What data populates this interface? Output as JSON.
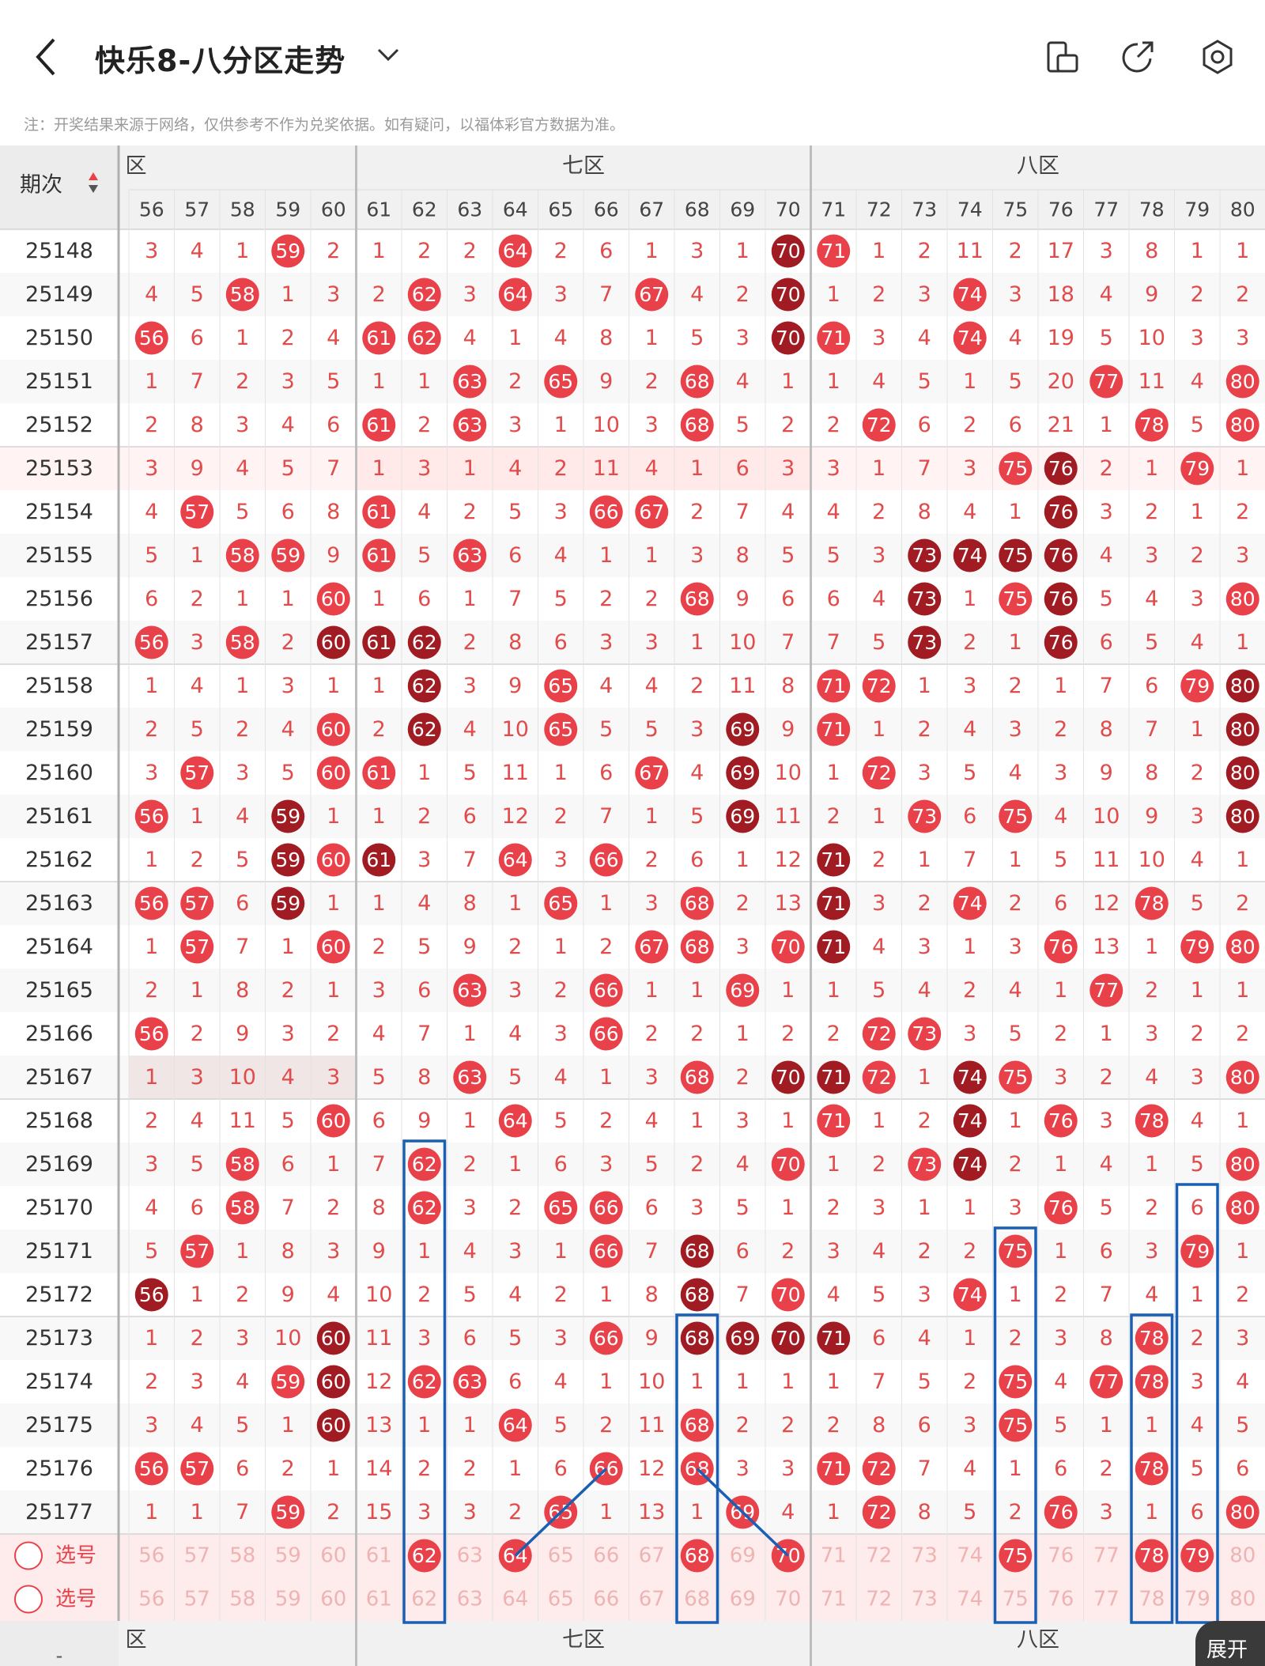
{
  "header": {
    "title": "快乐8-八分区走势",
    "icons": [
      "back-icon",
      "chevron-down-icon",
      "phone-landscape-icon",
      "share-icon",
      "settings-icon"
    ]
  },
  "note": "注：开奖结果来源于网络，仅供参考不作为兑奖依据。如有疑问，以福体彩官方数据为准。",
  "table": {
    "period_label": "期次",
    "zones": [
      {
        "name": "六区",
        "visible_text": "区"
      },
      {
        "name": "七区",
        "visible_text": "七区"
      },
      {
        "name": "八区",
        "visible_text": "八区"
      }
    ],
    "columns": [
      56,
      57,
      58,
      59,
      60,
      61,
      62,
      63,
      64,
      65,
      66,
      67,
      68,
      69,
      70,
      71,
      72,
      73,
      74,
      75,
      76,
      77,
      78,
      79,
      80
    ],
    "rows": [
      {
        "period": "25148",
        "cells": [
          "3",
          "4",
          "1",
          "59",
          "2",
          "1",
          "2",
          "2",
          "64",
          "2",
          "6",
          "1",
          "3",
          "1",
          "70",
          "71",
          "1",
          "2",
          "11",
          "2",
          "17",
          "3",
          "8",
          "1",
          "1"
        ]
      },
      {
        "period": "25149",
        "cells": [
          "4",
          "5",
          "58",
          "1",
          "3",
          "2",
          "62",
          "3",
          "64",
          "3",
          "7",
          "67",
          "4",
          "2",
          "70",
          "1",
          "2",
          "3",
          "74",
          "3",
          "18",
          "4",
          "9",
          "2",
          "2"
        ]
      },
      {
        "period": "25150",
        "cells": [
          "56",
          "6",
          "1",
          "2",
          "4",
          "61",
          "62",
          "4",
          "1",
          "4",
          "8",
          "1",
          "5",
          "3",
          "70",
          "71",
          "3",
          "4",
          "74",
          "4",
          "19",
          "5",
          "10",
          "3",
          "3"
        ]
      },
      {
        "period": "25151",
        "cells": [
          "1",
          "7",
          "2",
          "3",
          "5",
          "1",
          "1",
          "63",
          "2",
          "65",
          "9",
          "2",
          "68",
          "4",
          "1",
          "1",
          "4",
          "5",
          "1",
          "5",
          "20",
          "77",
          "11",
          "4",
          "80"
        ]
      },
      {
        "period": "25152",
        "cells": [
          "2",
          "8",
          "3",
          "4",
          "6",
          "61",
          "2",
          "63",
          "3",
          "1",
          "10",
          "3",
          "68",
          "5",
          "2",
          "2",
          "72",
          "6",
          "2",
          "6",
          "21",
          "1",
          "78",
          "5",
          "80"
        ]
      },
      {
        "period": "25153",
        "cells": [
          "3",
          "9",
          "4",
          "5",
          "7",
          "1",
          "3",
          "1",
          "4",
          "2",
          "11",
          "4",
          "1",
          "6",
          "3",
          "3",
          "1",
          "7",
          "3",
          "75",
          "76",
          "2",
          "1",
          "79",
          "1"
        ]
      },
      {
        "period": "25154",
        "cells": [
          "4",
          "57",
          "5",
          "6",
          "8",
          "61",
          "4",
          "2",
          "5",
          "3",
          "66",
          "67",
          "2",
          "7",
          "4",
          "4",
          "2",
          "8",
          "4",
          "1",
          "76",
          "3",
          "2",
          "1",
          "2"
        ]
      },
      {
        "period": "25155",
        "cells": [
          "5",
          "1",
          "58",
          "59",
          "9",
          "61",
          "5",
          "63",
          "6",
          "4",
          "1",
          "1",
          "3",
          "8",
          "5",
          "5",
          "3",
          "73",
          "74",
          "75",
          "76",
          "4",
          "3",
          "2",
          "3"
        ]
      },
      {
        "period": "25156",
        "cells": [
          "6",
          "2",
          "1",
          "1",
          "60",
          "1",
          "6",
          "1",
          "7",
          "5",
          "2",
          "2",
          "68",
          "9",
          "6",
          "6",
          "4",
          "73",
          "1",
          "75",
          "76",
          "5",
          "4",
          "3",
          "80"
        ]
      },
      {
        "period": "25157",
        "cells": [
          "56",
          "3",
          "58",
          "2",
          "60",
          "61",
          "62",
          "2",
          "8",
          "6",
          "3",
          "3",
          "1",
          "10",
          "7",
          "7",
          "5",
          "73",
          "2",
          "1",
          "76",
          "6",
          "5",
          "4",
          "1"
        ]
      },
      {
        "period": "25158",
        "cells": [
          "1",
          "4",
          "1",
          "3",
          "1",
          "1",
          "62",
          "3",
          "9",
          "65",
          "4",
          "4",
          "2",
          "11",
          "8",
          "71",
          "72",
          "1",
          "3",
          "2",
          "1",
          "7",
          "6",
          "79",
          "80"
        ]
      },
      {
        "period": "25159",
        "cells": [
          "2",
          "5",
          "2",
          "4",
          "60",
          "2",
          "62",
          "4",
          "10",
          "65",
          "5",
          "5",
          "3",
          "69",
          "9",
          "71",
          "1",
          "2",
          "4",
          "3",
          "2",
          "8",
          "7",
          "1",
          "80"
        ]
      },
      {
        "period": "25160",
        "cells": [
          "3",
          "57",
          "3",
          "5",
          "60",
          "61",
          "1",
          "5",
          "11",
          "1",
          "6",
          "67",
          "4",
          "69",
          "10",
          "1",
          "72",
          "3",
          "5",
          "4",
          "3",
          "9",
          "8",
          "2",
          "80"
        ]
      },
      {
        "period": "25161",
        "cells": [
          "56",
          "1",
          "4",
          "59",
          "1",
          "1",
          "2",
          "6",
          "12",
          "2",
          "7",
          "1",
          "5",
          "69",
          "11",
          "2",
          "1",
          "73",
          "6",
          "75",
          "4",
          "10",
          "9",
          "3",
          "80"
        ]
      },
      {
        "period": "25162",
        "cells": [
          "1",
          "2",
          "5",
          "59",
          "60",
          "61",
          "3",
          "7",
          "64",
          "3",
          "66",
          "2",
          "6",
          "1",
          "12",
          "71",
          "2",
          "1",
          "7",
          "1",
          "5",
          "11",
          "10",
          "4",
          "1"
        ]
      },
      {
        "period": "25163",
        "cells": [
          "56",
          "57",
          "6",
          "59",
          "1",
          "1",
          "4",
          "8",
          "1",
          "65",
          "1",
          "3",
          "68",
          "2",
          "13",
          "71",
          "3",
          "2",
          "74",
          "2",
          "6",
          "12",
          "78",
          "5",
          "2"
        ]
      },
      {
        "period": "25164",
        "cells": [
          "1",
          "57",
          "7",
          "1",
          "60",
          "2",
          "5",
          "9",
          "2",
          "1",
          "2",
          "67",
          "68",
          "3",
          "70",
          "71",
          "4",
          "3",
          "1",
          "3",
          "76",
          "13",
          "1",
          "79",
          "80"
        ]
      },
      {
        "period": "25165",
        "cells": [
          "2",
          "1",
          "8",
          "2",
          "1",
          "3",
          "6",
          "63",
          "3",
          "2",
          "66",
          "1",
          "1",
          "69",
          "1",
          "1",
          "5",
          "4",
          "2",
          "4",
          "1",
          "77",
          "2",
          "1",
          "1"
        ]
      },
      {
        "period": "25166",
        "cells": [
          "56",
          "2",
          "9",
          "3",
          "2",
          "4",
          "7",
          "1",
          "4",
          "3",
          "66",
          "2",
          "2",
          "1",
          "2",
          "2",
          "72",
          "73",
          "3",
          "5",
          "2",
          "1",
          "3",
          "2",
          "2"
        ]
      },
      {
        "period": "25167",
        "cells": [
          "1",
          "3",
          "10",
          "4",
          "3",
          "5",
          "8",
          "63",
          "5",
          "4",
          "1",
          "3",
          "68",
          "2",
          "70",
          "71",
          "72",
          "1",
          "74",
          "75",
          "3",
          "2",
          "4",
          "3",
          "80"
        ]
      },
      {
        "period": "25168",
        "cells": [
          "2",
          "4",
          "11",
          "5",
          "60",
          "6",
          "9",
          "1",
          "64",
          "5",
          "2",
          "4",
          "1",
          "3",
          "1",
          "71",
          "1",
          "2",
          "74",
          "1",
          "76",
          "3",
          "78",
          "4",
          "1"
        ]
      },
      {
        "period": "25169",
        "cells": [
          "3",
          "5",
          "58",
          "6",
          "1",
          "7",
          "62",
          "2",
          "1",
          "6",
          "3",
          "5",
          "2",
          "4",
          "70",
          "1",
          "2",
          "73",
          "74",
          "2",
          "1",
          "4",
          "1",
          "5",
          "80"
        ]
      },
      {
        "period": "25170",
        "cells": [
          "4",
          "6",
          "58",
          "7",
          "2",
          "8",
          "62",
          "3",
          "2",
          "65",
          "66",
          "6",
          "3",
          "5",
          "1",
          "2",
          "3",
          "1",
          "1",
          "3",
          "76",
          "5",
          "2",
          "6",
          "80"
        ]
      },
      {
        "period": "25171",
        "cells": [
          "5",
          "57",
          "1",
          "8",
          "3",
          "9",
          "1",
          "4",
          "3",
          "1",
          "66",
          "7",
          "68",
          "6",
          "2",
          "3",
          "4",
          "2",
          "2",
          "75",
          "1",
          "6",
          "3",
          "79",
          "1"
        ]
      },
      {
        "period": "25172",
        "cells": [
          "56",
          "1",
          "2",
          "9",
          "4",
          "10",
          "2",
          "5",
          "4",
          "2",
          "1",
          "8",
          "68",
          "7",
          "70",
          "4",
          "5",
          "3",
          "74",
          "1",
          "2",
          "7",
          "4",
          "1",
          "2"
        ]
      },
      {
        "period": "25173",
        "cells": [
          "1",
          "2",
          "3",
          "10",
          "60",
          "11",
          "3",
          "6",
          "5",
          "3",
          "66",
          "9",
          "68",
          "69",
          "70",
          "71",
          "6",
          "4",
          "1",
          "2",
          "3",
          "8",
          "78",
          "2",
          "3"
        ]
      },
      {
        "period": "25174",
        "cells": [
          "2",
          "3",
          "4",
          "59",
          "60",
          "12",
          "62",
          "63",
          "6",
          "4",
          "1",
          "10",
          "1",
          "1",
          "1",
          "1",
          "7",
          "5",
          "2",
          "75",
          "4",
          "77",
          "78",
          "3",
          "4"
        ]
      },
      {
        "period": "25175",
        "cells": [
          "3",
          "4",
          "5",
          "1",
          "60",
          "13",
          "1",
          "1",
          "64",
          "5",
          "2",
          "11",
          "68",
          "2",
          "2",
          "2",
          "8",
          "6",
          "3",
          "75",
          "5",
          "1",
          "1",
          "4",
          "5"
        ]
      },
      {
        "period": "25176",
        "cells": [
          "56",
          "57",
          "6",
          "2",
          "1",
          "14",
          "2",
          "2",
          "1",
          "6",
          "66",
          "12",
          "68",
          "3",
          "3",
          "71",
          "72",
          "7",
          "4",
          "1",
          "6",
          "2",
          "78",
          "5",
          "6"
        ]
      },
      {
        "period": "25177",
        "cells": [
          "1",
          "1",
          "7",
          "59",
          "2",
          "15",
          "3",
          "3",
          "2",
          "65",
          "1",
          "13",
          "1",
          "69",
          "4",
          "1",
          "72",
          "8",
          "5",
          "2",
          "76",
          "3",
          "1",
          "6",
          "80"
        ]
      }
    ],
    "select_label": "选号",
    "select_rows": [
      {
        "label": "选号",
        "selected": [
          62,
          64,
          68,
          70,
          75,
          78,
          79
        ]
      },
      {
        "label": "选号",
        "selected": []
      }
    ],
    "footer_zones": [
      "区",
      "七区",
      "八区"
    ],
    "footer_dash": "-"
  },
  "dark_balls": [
    "25148-70",
    "25149-70",
    "25150-70",
    "25153-76",
    "25154-76",
    "25155-73",
    "25155-74",
    "25155-75",
    "25155-76",
    "25156-73",
    "25156-76",
    "25157-60",
    "25157-61",
    "25157-62",
    "25157-73",
    "25157-76",
    "25158-62",
    "25158-80",
    "25159-62",
    "25159-69",
    "25159-80",
    "25160-69",
    "25160-80",
    "25161-59",
    "25161-69",
    "25161-80",
    "25162-59",
    "25162-61",
    "25162-71",
    "25163-59",
    "25163-71",
    "25164-71",
    "25167-70",
    "25167-71",
    "25167-74",
    "25168-74",
    "25169-74",
    "25171-68",
    "25172-56",
    "25172-68",
    "25173-60",
    "25173-68",
    "25173-69",
    "25173-70",
    "25173-71",
    "25174-60",
    "25175-60"
  ],
  "expand_label": "展开",
  "colors": {
    "ball_red": "#e8414a",
    "ball_dark": "#a01c22",
    "miss_text": "#e14b4b",
    "box_blue": "#1a5fb4",
    "header_bg": "#f1f1f1",
    "select_bg": "#fdeceb"
  }
}
